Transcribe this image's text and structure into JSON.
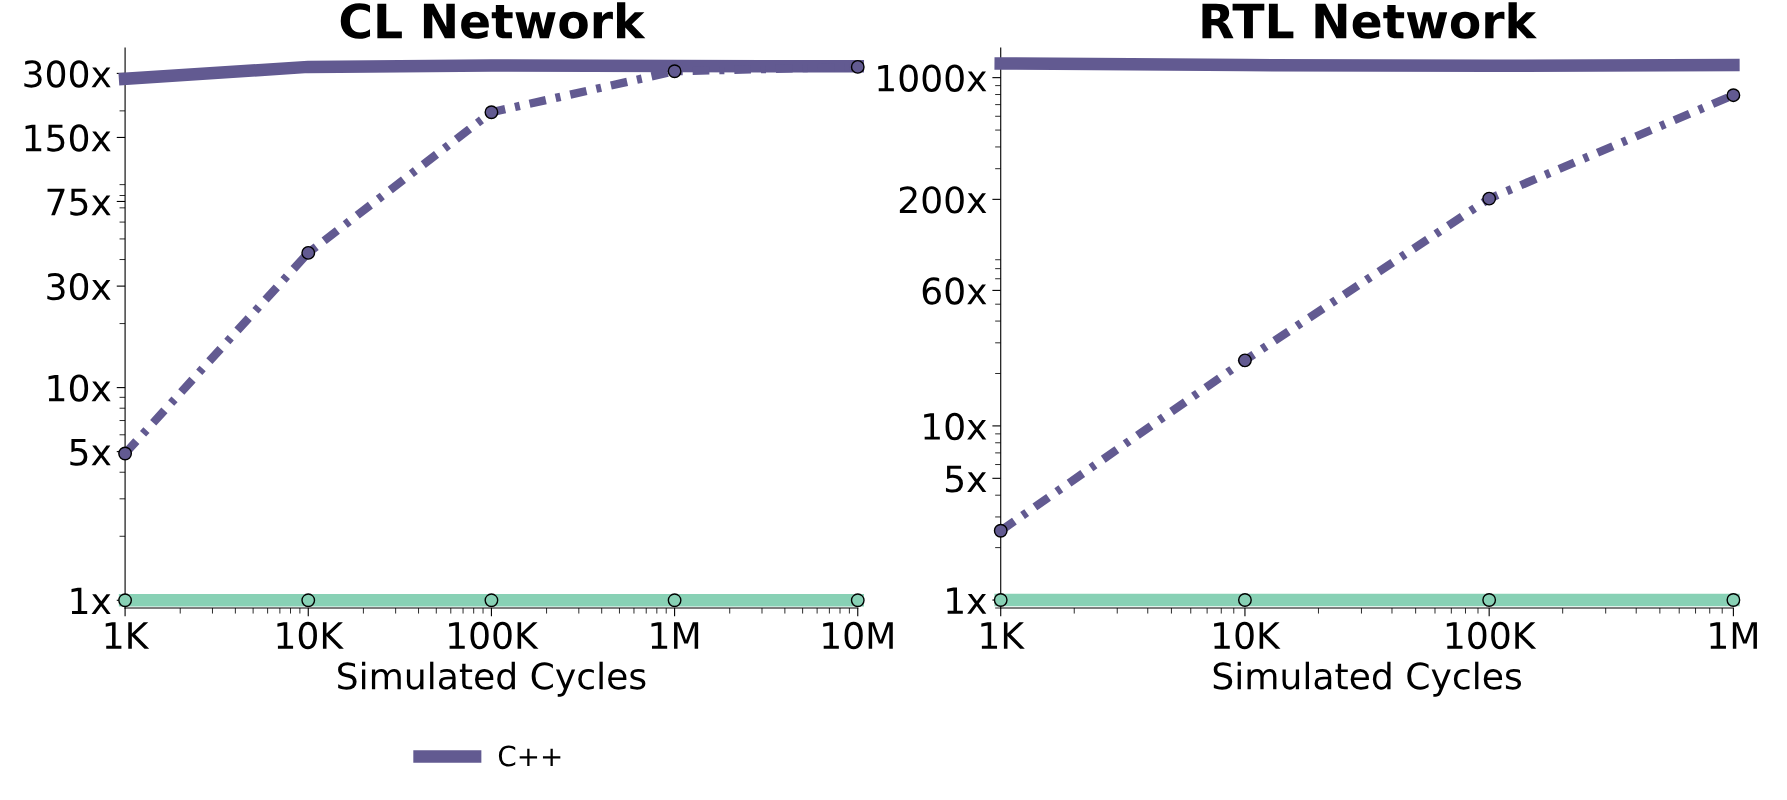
{
  "chart_data": [
    {
      "type": "line",
      "title": "CL Network",
      "xlabel": "Simulated Cycles",
      "log": "xy",
      "legend": "bottom",
      "grid": false,
      "xlim": [
        1000,
        10000000
      ],
      "xticks": [
        {
          "value": 1000,
          "label": "1K"
        },
        {
          "value": 10000,
          "label": "10K"
        },
        {
          "value": 100000,
          "label": "100K"
        },
        {
          "value": 1000000,
          "label": "1M"
        },
        {
          "value": 10000000,
          "label": "10M"
        }
      ],
      "ylim": [
        0.92,
        395
      ],
      "yticks": [
        {
          "value": 1,
          "label": "1x"
        },
        {
          "value": 5,
          "label": "5x"
        },
        {
          "value": 10,
          "label": "10x"
        },
        {
          "value": 30,
          "label": "30x"
        },
        {
          "value": 75,
          "label": "75x"
        },
        {
          "value": 150,
          "label": "150x"
        },
        {
          "value": 300,
          "label": "300x"
        }
      ],
      "x": [
        1000,
        10000,
        100000,
        1000000,
        10000000
      ],
      "series": [
        {
          "color": "#88d1b5",
          "values": [
            1,
            1,
            1,
            1,
            1
          ],
          "marker": "circle",
          "line_style": "solid"
        },
        {
          "name": "C++",
          "color": "#625a91",
          "values": [
            283,
            322,
            327,
            325,
            324
          ],
          "marker": "none",
          "line_style": "solid"
        },
        {
          "color": "#625a91",
          "values": [
            4.9,
            43,
            197,
            307,
            322
          ],
          "marker": "circle",
          "line_style": "dotted"
        }
      ]
    },
    {
      "type": "line",
      "title": "RTL Network",
      "xlabel": "Simulated Cycles",
      "log": "xy",
      "grid": false,
      "xlim": [
        1000,
        1000000
      ],
      "xticks": [
        {
          "value": 1000,
          "label": "1K"
        },
        {
          "value": 10000,
          "label": "10K"
        },
        {
          "value": 100000,
          "label": "100K"
        },
        {
          "value": 1000000,
          "label": "1M"
        }
      ],
      "ylim": [
        0.9,
        1480
      ],
      "yticks": [
        {
          "value": 1,
          "label": "1x"
        },
        {
          "value": 5,
          "label": "5x"
        },
        {
          "value": 10,
          "label": "10x"
        },
        {
          "value": 60,
          "label": "60x"
        },
        {
          "value": 200,
          "label": "200x"
        },
        {
          "value": 1000,
          "label": "1000x"
        }
      ],
      "x": [
        1000,
        10000,
        100000,
        1000000
      ],
      "series": [
        {
          "color": "#88d1b5",
          "values": [
            1,
            1,
            1,
            1
          ],
          "marker": "circle",
          "line_style": "solid"
        },
        {
          "color": "#625a91",
          "values": [
            1207,
            1181,
            1170,
            1181
          ],
          "marker": "none",
          "line_style": "solid"
        },
        {
          "color": "#625a91",
          "values": [
            2.5,
            23.8,
            202,
            793
          ],
          "marker": "circle",
          "line_style": "dotted"
        }
      ]
    }
  ]
}
